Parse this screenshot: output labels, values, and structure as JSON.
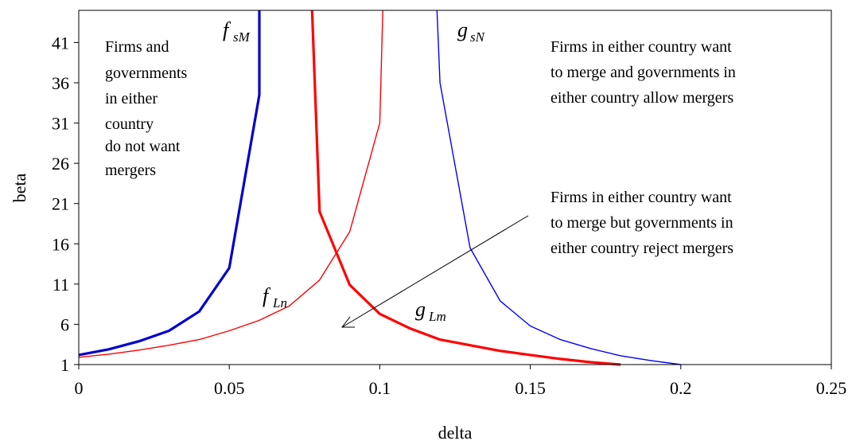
{
  "chart_data": {
    "type": "line",
    "xlabel": "delta",
    "ylabel": "beta",
    "xlim": [
      0,
      0.25
    ],
    "ylim": [
      1,
      45
    ],
    "xticks": [
      "0",
      "0.05",
      "0.1",
      "0.15",
      "0.2",
      "0.25"
    ],
    "yticks": [
      "1",
      "6",
      "11",
      "16",
      "21",
      "26",
      "31",
      "36",
      "41"
    ],
    "grid": false,
    "legend": "none",
    "series": [
      {
        "name": "f_sM",
        "label_main": "f",
        "label_sub": "sM",
        "color": "#0000cc",
        "weight": "thick",
        "x": [
          0,
          0.01,
          0.02,
          0.03,
          0.04,
          0.05,
          0.06,
          0.06
        ],
        "y": [
          2.2,
          2.9,
          3.9,
          5.2,
          7.6,
          13.0,
          34.5,
          45
        ]
      },
      {
        "name": "f_Ln",
        "label_main": "f",
        "label_sub": "Ln",
        "color": "#ff0000",
        "weight": "thin",
        "x": [
          0,
          0.01,
          0.02,
          0.03,
          0.04,
          0.05,
          0.06,
          0.07,
          0.08,
          0.09,
          0.1,
          0.101
        ],
        "y": [
          1.9,
          2.3,
          2.8,
          3.4,
          4.1,
          5.2,
          6.5,
          8.3,
          11.5,
          17.5,
          31.0,
          45
        ]
      },
      {
        "name": "g_Lm",
        "label_main": "g",
        "label_sub": "Lm",
        "color": "#ff0000",
        "weight": "thick",
        "x": [
          0.0775,
          0.08,
          0.09,
          0.1,
          0.11,
          0.12,
          0.13,
          0.14,
          0.15,
          0.16,
          0.17,
          0.18
        ],
        "y": [
          45,
          20.0,
          10.9,
          7.3,
          5.5,
          4.1,
          3.4,
          2.7,
          2.2,
          1.7,
          1.3,
          1.0
        ]
      },
      {
        "name": "g_sN",
        "label_main": "g",
        "label_sub": "sN",
        "color": "#0000ff",
        "weight": "thin",
        "x": [
          0.119,
          0.12,
          0.13,
          0.14,
          0.15,
          0.16,
          0.17,
          0.18,
          0.19,
          0.2
        ],
        "y": [
          45,
          36,
          15.5,
          8.9,
          5.8,
          4.1,
          3.0,
          2.1,
          1.5,
          1.0
        ]
      }
    ],
    "annotations": [
      {
        "id": "region-left",
        "lines": [
          "Firms and",
          "governments",
          "in either",
          "country",
          "do not want",
          "mergers"
        ]
      },
      {
        "id": "region-right-top",
        "lines": [
          "Firms in either country want",
          "to merge and governments in",
          "either country allow mergers"
        ]
      },
      {
        "id": "region-right-mid",
        "lines": [
          "Firms in either country want",
          "to merge but governments in",
          "either country reject mergers"
        ]
      }
    ]
  }
}
